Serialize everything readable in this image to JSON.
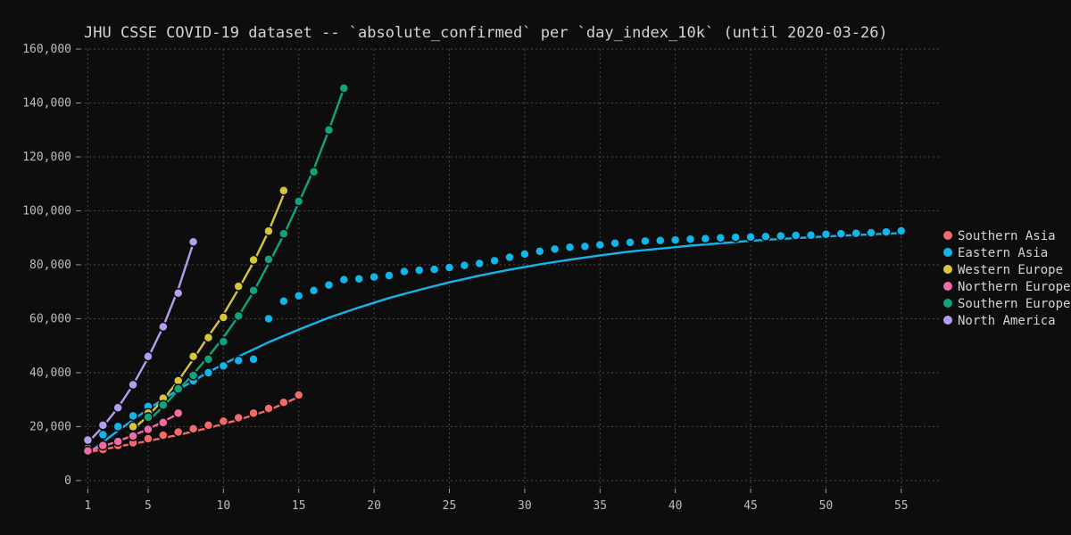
{
  "chart_data": {
    "type": "scatter",
    "title": "JHU CSSE COVID-19 dataset -- `absolute_confirmed` per `day_index_10k` (until 2020-03-26)",
    "xlabel": "",
    "ylabel": "",
    "xlim": [
      0.5,
      57.5
    ],
    "ylim": [
      -3000,
      160000
    ],
    "x_ticks": [
      1,
      5,
      10,
      15,
      20,
      25,
      30,
      35,
      40,
      45,
      50,
      55
    ],
    "y_ticks": [
      0,
      20000,
      40000,
      60000,
      80000,
      100000,
      120000,
      140000,
      160000
    ],
    "y_tick_labels": [
      "0",
      "20,000",
      "40,000",
      "60,000",
      "80,000",
      "100,000",
      "120,000",
      "140,000",
      "160,000"
    ],
    "grid": true,
    "legend_position": "right",
    "series": [
      {
        "name": "Southern Asia",
        "color": "#f46a6a",
        "points": [
          [
            1,
            10500
          ],
          [
            2,
            11500
          ],
          [
            3,
            13000
          ],
          [
            4,
            14000
          ],
          [
            5,
            15500
          ],
          [
            6,
            16800
          ],
          [
            7,
            18000
          ],
          [
            8,
            19200
          ],
          [
            9,
            20500
          ],
          [
            10,
            22000
          ],
          [
            11,
            23300
          ],
          [
            12,
            25000
          ],
          [
            13,
            26700
          ],
          [
            14,
            29000
          ],
          [
            15,
            31700
          ]
        ],
        "fit": [
          [
            1,
            10500
          ],
          [
            3,
            12600
          ],
          [
            5,
            14700
          ],
          [
            7,
            16900
          ],
          [
            9,
            19500
          ],
          [
            11,
            22500
          ],
          [
            13,
            26100
          ],
          [
            15,
            31000
          ]
        ]
      },
      {
        "name": "Eastern Asia",
        "color": "#12b5ea",
        "points": [
          [
            1,
            12000
          ],
          [
            2,
            17000
          ],
          [
            3,
            20000
          ],
          [
            4,
            24000
          ],
          [
            5,
            27500
          ],
          [
            6,
            30500
          ],
          [
            7,
            34500
          ],
          [
            8,
            37000
          ],
          [
            9,
            40000
          ],
          [
            10,
            42500
          ],
          [
            11,
            44500
          ],
          [
            12,
            45000
          ],
          [
            13,
            60000
          ],
          [
            14,
            66500
          ],
          [
            15,
            68500
          ],
          [
            16,
            70500
          ],
          [
            17,
            72500
          ],
          [
            18,
            74500
          ],
          [
            19,
            74800
          ],
          [
            20,
            75500
          ],
          [
            21,
            76000
          ],
          [
            22,
            77500
          ],
          [
            23,
            78000
          ],
          [
            24,
            78300
          ],
          [
            25,
            79000
          ],
          [
            26,
            79800
          ],
          [
            27,
            80500
          ],
          [
            28,
            81500
          ],
          [
            29,
            82800
          ],
          [
            30,
            84000
          ],
          [
            31,
            85000
          ],
          [
            32,
            85800
          ],
          [
            33,
            86500
          ],
          [
            34,
            86800
          ],
          [
            35,
            87400
          ],
          [
            36,
            88000
          ],
          [
            37,
            88300
          ],
          [
            38,
            88800
          ],
          [
            39,
            89000
          ],
          [
            40,
            89200
          ],
          [
            41,
            89500
          ],
          [
            42,
            89700
          ],
          [
            43,
            90000
          ],
          [
            44,
            90200
          ],
          [
            45,
            90300
          ],
          [
            46,
            90500
          ],
          [
            47,
            90700
          ],
          [
            48,
            90900
          ],
          [
            49,
            91000
          ],
          [
            50,
            91300
          ],
          [
            51,
            91500
          ],
          [
            52,
            91700
          ],
          [
            53,
            91900
          ],
          [
            54,
            92200
          ],
          [
            55,
            92600
          ]
        ],
        "fit": [
          [
            1,
            10000
          ],
          [
            3,
            18500
          ],
          [
            5,
            26500
          ],
          [
            7,
            33700
          ],
          [
            9,
            40200
          ],
          [
            11,
            46000
          ],
          [
            13,
            51300
          ],
          [
            15,
            56000
          ],
          [
            17,
            60400
          ],
          [
            19,
            64200
          ],
          [
            21,
            67700
          ],
          [
            23,
            70700
          ],
          [
            25,
            73500
          ],
          [
            27,
            76000
          ],
          [
            29,
            78200
          ],
          [
            31,
            80200
          ],
          [
            33,
            81900
          ],
          [
            35,
            83500
          ],
          [
            37,
            84900
          ],
          [
            39,
            86000
          ],
          [
            41,
            87100
          ],
          [
            43,
            88000
          ],
          [
            45,
            88900
          ],
          [
            47,
            89600
          ],
          [
            49,
            90200
          ],
          [
            51,
            90800
          ],
          [
            53,
            91300
          ],
          [
            55,
            91800
          ]
        ]
      },
      {
        "name": "Western Europe",
        "color": "#d8c63a",
        "points": [
          [
            4,
            20000
          ],
          [
            5,
            25000
          ],
          [
            6,
            30500
          ],
          [
            7,
            37000
          ],
          [
            8,
            46000
          ],
          [
            9,
            53000
          ],
          [
            10,
            60500
          ],
          [
            11,
            72000
          ],
          [
            12,
            81800
          ],
          [
            13,
            92500
          ],
          [
            14,
            107500
          ]
        ],
        "fit": [
          [
            4,
            19000
          ],
          [
            5,
            24000
          ],
          [
            6,
            30000
          ],
          [
            7,
            37000
          ],
          [
            8,
            45000
          ],
          [
            9,
            53500
          ],
          [
            10,
            61500
          ],
          [
            11,
            71000
          ],
          [
            12,
            81000
          ],
          [
            13,
            92500
          ],
          [
            14,
            106000
          ]
        ]
      },
      {
        "name": "Northern Europe",
        "color": "#f06ca5",
        "points": [
          [
            1,
            11000
          ],
          [
            2,
            13000
          ],
          [
            3,
            14500
          ],
          [
            4,
            16500
          ],
          [
            5,
            19000
          ],
          [
            6,
            21500
          ],
          [
            7,
            25000
          ]
        ],
        "fit": [
          [
            1,
            11000
          ],
          [
            2,
            12700
          ],
          [
            3,
            14600
          ],
          [
            4,
            16700
          ],
          [
            5,
            19100
          ],
          [
            6,
            21800
          ],
          [
            7,
            24800
          ]
        ]
      },
      {
        "name": "Southern Europe",
        "color": "#10a37f",
        "points": [
          [
            5,
            23500
          ],
          [
            6,
            28000
          ],
          [
            7,
            34000
          ],
          [
            8,
            39000
          ],
          [
            9,
            45000
          ],
          [
            10,
            51500
          ],
          [
            11,
            61000
          ],
          [
            12,
            70500
          ],
          [
            13,
            82000
          ],
          [
            14,
            91500
          ],
          [
            15,
            103500
          ],
          [
            16,
            114500
          ],
          [
            17,
            130000
          ],
          [
            18,
            145500
          ]
        ],
        "fit": [
          [
            5,
            22000
          ],
          [
            6,
            27500
          ],
          [
            7,
            33500
          ],
          [
            8,
            39500
          ],
          [
            9,
            46000
          ],
          [
            10,
            53000
          ],
          [
            11,
            61000
          ],
          [
            12,
            70000
          ],
          [
            13,
            80500
          ],
          [
            14,
            91000
          ],
          [
            15,
            103000
          ],
          [
            16,
            115500
          ],
          [
            17,
            130000
          ],
          [
            18,
            145500
          ]
        ]
      },
      {
        "name": "North America",
        "color": "#b49df0",
        "points": [
          [
            1,
            15000
          ],
          [
            2,
            20500
          ],
          [
            3,
            27000
          ],
          [
            4,
            35500
          ],
          [
            5,
            46000
          ],
          [
            6,
            57000
          ],
          [
            7,
            69500
          ],
          [
            8,
            88500
          ]
        ],
        "fit": [
          [
            1,
            14000
          ],
          [
            2,
            20000
          ],
          [
            3,
            27000
          ],
          [
            4,
            35500
          ],
          [
            5,
            45500
          ],
          [
            6,
            57000
          ],
          [
            7,
            71000
          ],
          [
            8,
            88000
          ]
        ]
      }
    ]
  }
}
